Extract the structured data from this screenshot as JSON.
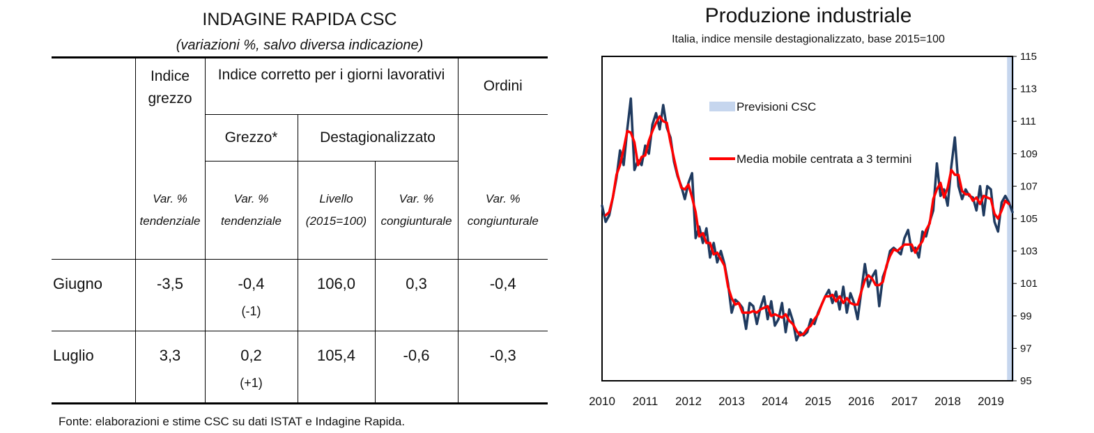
{
  "table": {
    "title": "INDAGINE RAPIDA CSC",
    "subtitle": "(variazioni %, salvo diversa indicazione)",
    "headers": {
      "indice_grezzo": "Indice grezzo",
      "indice_corretto": "Indice corretto per i giorni lavorativi",
      "ordini": "Ordini",
      "grezzo_star": "Grezzo*",
      "destagionalizzato": "Destagionalizzato",
      "unit_var_tend_1": "Var. % tendenziale",
      "unit_var_tend_2": "Var. % tendenziale",
      "unit_livello": "Livello (2015=100)",
      "unit_var_cong_1": "Var. % congiunturale",
      "unit_var_cong_2": "Var. % congiunturale"
    },
    "rows": [
      {
        "label": "Giugno",
        "grezzo": "-3,5",
        "corretto": "-0,4",
        "corretto_rev": "(-1)",
        "livello": "106,0",
        "cong": "0,3",
        "ordini": "-0,4"
      },
      {
        "label": "Luglio",
        "grezzo": "3,3",
        "corretto": "0,2",
        "corretto_rev": "(+1)",
        "livello": "105,4",
        "cong": "-0,6",
        "ordini": "-0,3"
      }
    ],
    "footnote": "Fonte: elaborazioni e stime CSC su dati ISTAT e Indagine Rapida."
  },
  "chart_data": {
    "type": "line",
    "title": "Produzione industriale",
    "subtitle": "Italia, indice mensile destagionalizzato, base 2015=100",
    "xlabel": "",
    "ylabel": "",
    "x_tick_labels": [
      "2010",
      "2011",
      "2012",
      "2013",
      "2014",
      "2015",
      "2016",
      "2017",
      "2018",
      "2019"
    ],
    "y_tick_labels": [
      "115",
      "113",
      "111",
      "109",
      "107",
      "105",
      "103",
      "101",
      "99",
      "97",
      "95"
    ],
    "ylim": [
      95,
      115
    ],
    "y_axis_side": "right",
    "grid": false,
    "legend_position": "top-left",
    "x": [
      "2010-01",
      "2010-02",
      "2010-03",
      "2010-04",
      "2010-05",
      "2010-06",
      "2010-07",
      "2010-08",
      "2010-09",
      "2010-10",
      "2010-11",
      "2010-12",
      "2011-01",
      "2011-02",
      "2011-03",
      "2011-04",
      "2011-05",
      "2011-06",
      "2011-07",
      "2011-08",
      "2011-09",
      "2011-10",
      "2011-11",
      "2011-12",
      "2012-01",
      "2012-02",
      "2012-03",
      "2012-04",
      "2012-05",
      "2012-06",
      "2012-07",
      "2012-08",
      "2012-09",
      "2012-10",
      "2012-11",
      "2012-12",
      "2013-01",
      "2013-02",
      "2013-03",
      "2013-04",
      "2013-05",
      "2013-06",
      "2013-07",
      "2013-08",
      "2013-09",
      "2013-10",
      "2013-11",
      "2013-12",
      "2014-01",
      "2014-02",
      "2014-03",
      "2014-04",
      "2014-05",
      "2014-06",
      "2014-07",
      "2014-08",
      "2014-09",
      "2014-10",
      "2014-11",
      "2014-12",
      "2015-01",
      "2015-02",
      "2015-03",
      "2015-04",
      "2015-05",
      "2015-06",
      "2015-07",
      "2015-08",
      "2015-09",
      "2015-10",
      "2015-11",
      "2015-12",
      "2016-01",
      "2016-02",
      "2016-03",
      "2016-04",
      "2016-05",
      "2016-06",
      "2016-07",
      "2016-08",
      "2016-09",
      "2016-10",
      "2016-11",
      "2016-12",
      "2017-01",
      "2017-02",
      "2017-03",
      "2017-04",
      "2017-05",
      "2017-06",
      "2017-07",
      "2017-08",
      "2017-09",
      "2017-10",
      "2017-11",
      "2017-12",
      "2018-01",
      "2018-02",
      "2018-03",
      "2018-04",
      "2018-05",
      "2018-06",
      "2018-07",
      "2018-08",
      "2018-09",
      "2018-10",
      "2018-11",
      "2018-12",
      "2019-01",
      "2019-02",
      "2019-03",
      "2019-04",
      "2019-05",
      "2019-06",
      "2019-07"
    ],
    "series": [
      {
        "name": "",
        "color": "#1f3a5f",
        "values": [
          105.8,
          104.8,
          105.2,
          106.3,
          107.5,
          109.2,
          108.3,
          110.5,
          112.4,
          108.0,
          108.6,
          108.3,
          109.5,
          109.0,
          110.8,
          111.5,
          110.5,
          112.0,
          110.6,
          110.0,
          108.5,
          107.6,
          107.0,
          106.2,
          107.2,
          107.8,
          103.8,
          104.5,
          103.5,
          104.4,
          102.6,
          103.5,
          102.3,
          103.0,
          102.2,
          101.0,
          99.2,
          100.0,
          99.8,
          99.5,
          98.2,
          99.8,
          99.6,
          98.5,
          99.5,
          100.2,
          98.8,
          99.9,
          98.4,
          98.8,
          99.8,
          98.0,
          99.4,
          98.7,
          97.5,
          98.0,
          97.8,
          98.0,
          98.8,
          98.5,
          99.2,
          99.7,
          100.2,
          100.6,
          99.8,
          100.5,
          99.4,
          100.8,
          99.2,
          100.4,
          99.8,
          98.8,
          100.5,
          102.2,
          100.8,
          101.4,
          101.8,
          99.6,
          101.4,
          102.0,
          103.0,
          103.2,
          103.0,
          102.8,
          103.8,
          104.3,
          103.0,
          103.2,
          102.6,
          104.2,
          103.9,
          104.8,
          105.5,
          108.4,
          106.4,
          106.8,
          105.8,
          108.2,
          110.0,
          107.0,
          106.2,
          106.8,
          106.4,
          106.3,
          105.5,
          107.0,
          105.2,
          107.0,
          106.8,
          104.8,
          104.2,
          106.0,
          106.4,
          106.0,
          105.4
        ]
      },
      {
        "name": "Media mobile centrata a 3 termini",
        "color": "#ff0000",
        "values": [
          null,
          105.2,
          105.4,
          106.3,
          107.7,
          108.3,
          109.3,
          110.4,
          110.3,
          109.7,
          108.3,
          108.8,
          108.9,
          109.8,
          110.4,
          110.9,
          111.3,
          111.0,
          110.9,
          109.7,
          108.7,
          107.7,
          106.9,
          106.8,
          107.1,
          106.3,
          105.4,
          103.9,
          104.1,
          103.5,
          103.5,
          102.8,
          102.9,
          102.5,
          102.1,
          100.8,
          100.1,
          99.7,
          99.8,
          99.2,
          99.2,
          99.2,
          99.3,
          99.2,
          99.4,
          99.5,
          99.6,
          99.0,
          99.1,
          99.0,
          98.9,
          99.1,
          98.7,
          98.5,
          98.1,
          97.8,
          97.9,
          98.2,
          98.4,
          98.8,
          99.1,
          99.7,
          100.2,
          100.2,
          100.3,
          99.9,
          100.2,
          99.8,
          100.1,
          99.8,
          99.7,
          99.7,
          100.5,
          101.2,
          101.5,
          101.3,
          100.9,
          100.9,
          101.1,
          102.1,
          102.7,
          103.1,
          103.0,
          103.2,
          103.4,
          103.4,
          103.4,
          102.9,
          103.3,
          103.6,
          104.3,
          104.7,
          106.2,
          106.8,
          107.2,
          106.3,
          106.9,
          108.0,
          107.7,
          107.7,
          106.7,
          106.5,
          106.5,
          106.1,
          106.3,
          105.9,
          106.4,
          106.3,
          106.2,
          105.3,
          105.0,
          105.5,
          106.1,
          105.9,
          null
        ]
      }
    ],
    "forecast_band": {
      "label": "Previsioni CSC",
      "color": "#c6d6ee",
      "from": "2019-06",
      "to": "2019-07"
    }
  }
}
